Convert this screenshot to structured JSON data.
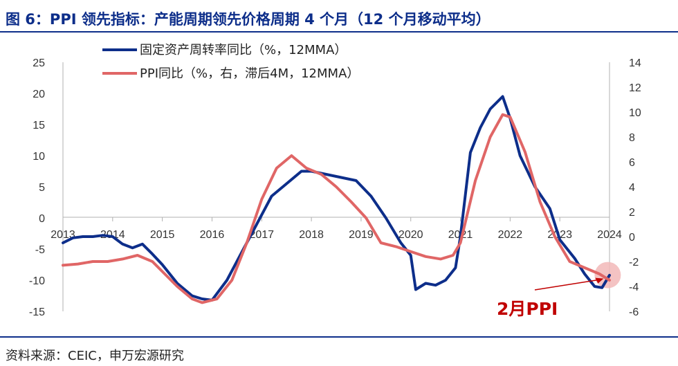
{
  "title": "图 6：PPI 领先指标：产能周期领先价格周期 4 个月（12 个月移动平均）",
  "source": "资料来源：CEIC，申万宏源研究",
  "chart_data": {
    "type": "line",
    "left_axis": {
      "ylim": [
        -15,
        25
      ],
      "ticks": [
        "25",
        "20",
        "15",
        "10",
        "5",
        "0",
        "-5",
        "-10",
        "-15"
      ]
    },
    "right_axis": {
      "ylim": [
        -6,
        14
      ],
      "ticks": [
        "14",
        "12",
        "10",
        "8",
        "6",
        "4",
        "2",
        "0",
        "-2",
        "-4",
        "-6"
      ]
    },
    "x_axis": {
      "xlim": [
        2013.0,
        2024.0
      ],
      "ticks": [
        "2013",
        "2014",
        "2015",
        "2016",
        "2017",
        "2018",
        "2019",
        "2020",
        "2021",
        "2022",
        "2023",
        "2024"
      ]
    },
    "series": [
      {
        "name": "固定资产周转率同比（%，12MMA）",
        "axis": "left",
        "color": "#0d2e8a",
        "x": [
          2013.0,
          2013.2,
          2013.4,
          2013.6,
          2013.8,
          2014.0,
          2014.2,
          2014.4,
          2014.6,
          2014.8,
          2015.0,
          2015.3,
          2015.6,
          2015.8,
          2016.0,
          2016.3,
          2016.6,
          2016.9,
          2017.2,
          2017.5,
          2017.8,
          2018.0,
          2018.3,
          2018.6,
          2018.9,
          2019.2,
          2019.5,
          2019.8,
          2020.0,
          2020.1,
          2020.3,
          2020.5,
          2020.7,
          2020.9,
          2021.0,
          2021.2,
          2021.4,
          2021.6,
          2021.85,
          2022.0,
          2022.2,
          2022.5,
          2022.8,
          2023.0,
          2023.3,
          2023.5,
          2023.7,
          2023.85,
          2024.0
        ],
        "values": [
          -4,
          -3.2,
          -3,
          -3,
          -2.8,
          -3,
          -4.2,
          -4.8,
          -4.2,
          -5.8,
          -7.5,
          -10.5,
          -12.5,
          -13,
          -13.2,
          -10,
          -5.5,
          -1,
          3.5,
          5.5,
          7.5,
          7.5,
          7,
          6.5,
          6,
          3.5,
          0,
          -4,
          -6,
          -11.5,
          -10.5,
          -10.8,
          -10,
          -8,
          -3,
          10.5,
          14.5,
          17.5,
          19.5,
          16,
          10,
          5,
          1.5,
          -3.5,
          -6.5,
          -9,
          -11,
          -11.2,
          -9.2
        ]
      },
      {
        "name": "PPI同比（%，右，滞后4M，12MMA）",
        "axis": "right",
        "color": "#e06666",
        "x": [
          2013.0,
          2013.3,
          2013.6,
          2013.9,
          2014.2,
          2014.5,
          2014.8,
          2015.0,
          2015.3,
          2015.6,
          2015.8,
          2016.1,
          2016.4,
          2016.7,
          2017.0,
          2017.3,
          2017.6,
          2017.9,
          2018.2,
          2018.5,
          2018.8,
          2019.1,
          2019.4,
          2019.7,
          2020.0,
          2020.3,
          2020.6,
          2020.85,
          2021.0,
          2021.3,
          2021.6,
          2021.85,
          2022.0,
          2022.3,
          2022.6,
          2022.9,
          2023.2,
          2023.5,
          2023.8,
          2024.0
        ],
        "values": [
          -2.3,
          -2.2,
          -2,
          -2,
          -1.8,
          -1.5,
          -2.0,
          -2.8,
          -4.0,
          -5.0,
          -5.3,
          -5.0,
          -3.5,
          -0.5,
          3,
          5.5,
          6.5,
          5.5,
          5.0,
          4.0,
          2.8,
          1.5,
          -0.5,
          -0.8,
          -1.2,
          -1.6,
          -1.8,
          -1.5,
          -0.5,
          4.5,
          8.0,
          9.8,
          9.6,
          6.8,
          2.8,
          0,
          -2.0,
          -2.5,
          -3.0,
          -3.5
        ]
      }
    ],
    "annotation": {
      "text": "2月PPI",
      "target": {
        "x": 2023.88,
        "value": -3.2,
        "axis": "right"
      }
    }
  }
}
